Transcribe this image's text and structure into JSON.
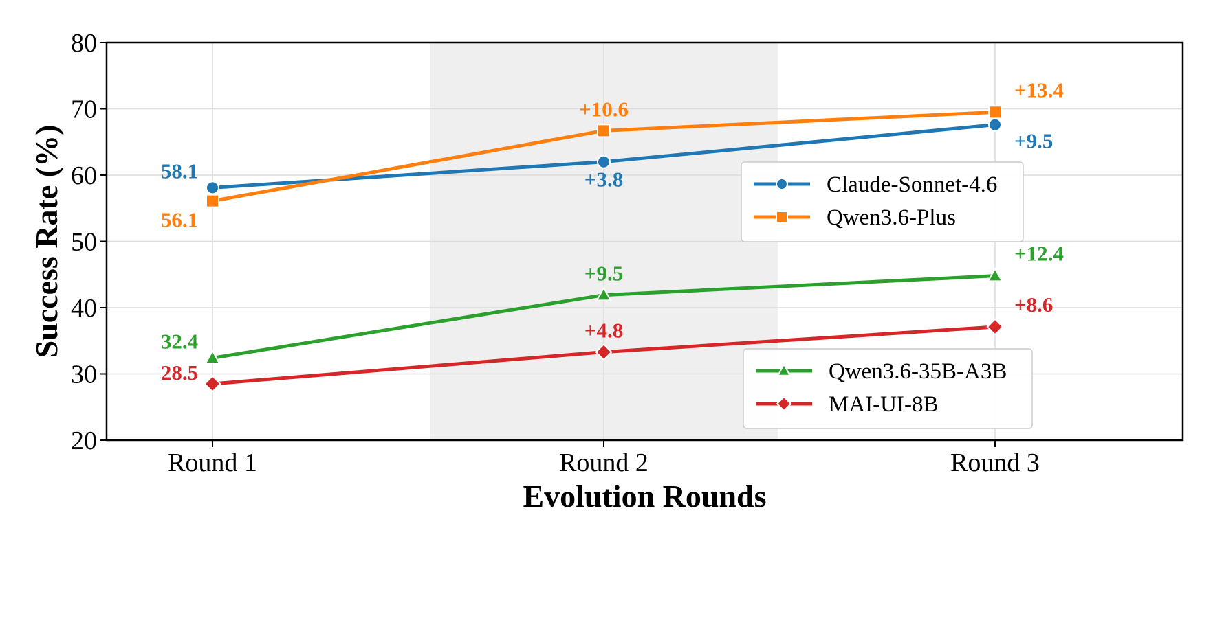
{
  "chart_data": {
    "type": "line",
    "categories": [
      "Round 1",
      "Round 2",
      "Round 3"
    ],
    "xlabel": "Evolution Rounds",
    "ylabel": "Success Rate (%)",
    "ylim": [
      20,
      80
    ],
    "yticks": [
      "20",
      "30",
      "40",
      "50",
      "60",
      "70",
      "80"
    ],
    "grid": true,
    "highlight_category": "Round 2",
    "series": [
      {
        "name": "Claude-Sonnet-4.6",
        "color": "#1f77b4",
        "marker": "circle",
        "values": [
          58.1,
          62.0,
          67.6
        ],
        "labels": [
          "58.1",
          "+3.8",
          "+9.5"
        ],
        "label_pos": [
          "above-left",
          "below",
          "below-right"
        ]
      },
      {
        "name": "Qwen3.6-Plus",
        "color": "#ff7f0e",
        "marker": "square",
        "values": [
          56.1,
          66.7,
          69.5
        ],
        "labels": [
          "56.1",
          "+10.6",
          "+13.4"
        ],
        "label_pos": [
          "below-left",
          "above",
          "above-right"
        ]
      },
      {
        "name": "Qwen3.6-35B-A3B",
        "color": "#2ca02c",
        "marker": "triangle",
        "values": [
          32.4,
          41.9,
          44.8
        ],
        "labels": [
          "32.4",
          "+9.5",
          "+12.4"
        ],
        "label_pos": [
          "above-left",
          "above",
          "above-right"
        ]
      },
      {
        "name": "MAI-UI-8B",
        "color": "#d62728",
        "marker": "diamond",
        "values": [
          28.5,
          33.3,
          37.1
        ],
        "labels": [
          "28.5",
          "+4.8",
          "+8.6"
        ],
        "label_pos": [
          "left",
          "above",
          "above-right"
        ]
      }
    ],
    "legends": [
      {
        "placement": "upper-right",
        "series": [
          0,
          1
        ]
      },
      {
        "placement": "lower-right",
        "series": [
          2,
          3
        ]
      }
    ]
  }
}
